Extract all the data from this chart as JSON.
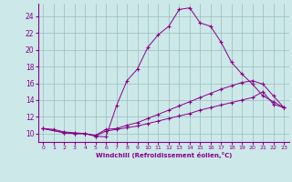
{
  "xlabel": "Windchill (Refroidissement éolien,°C)",
  "bg_color": "#cce8e8",
  "grid_color": "#9bbcbc",
  "line_color": "#880088",
  "xlim": [
    -0.5,
    23.5
  ],
  "ylim": [
    9.0,
    25.5
  ],
  "xticks": [
    0,
    1,
    2,
    3,
    4,
    5,
    6,
    7,
    8,
    9,
    10,
    11,
    12,
    13,
    14,
    15,
    16,
    17,
    18,
    19,
    20,
    21,
    22,
    23
  ],
  "yticks": [
    10,
    12,
    14,
    16,
    18,
    20,
    22,
    24
  ],
  "curve1_x": [
    0,
    1,
    2,
    3,
    4,
    5,
    6,
    7,
    8,
    9,
    10,
    11,
    12,
    13,
    14,
    15,
    16,
    17,
    18,
    19,
    20,
    21,
    22,
    23
  ],
  "curve1_y": [
    10.6,
    10.5,
    10.2,
    10.1,
    10.0,
    9.7,
    9.6,
    13.3,
    16.3,
    17.7,
    20.3,
    21.8,
    22.8,
    24.8,
    25.0,
    23.2,
    22.8,
    20.9,
    18.5,
    17.1,
    15.9,
    14.5,
    13.8,
    13.1
  ],
  "curve2_x": [
    0,
    2,
    3,
    4,
    5,
    6,
    7,
    8,
    9,
    10,
    11,
    12,
    13,
    14,
    15,
    16,
    17,
    18,
    19,
    20,
    21,
    22,
    23
  ],
  "curve2_y": [
    10.6,
    10.1,
    10.0,
    10.0,
    9.8,
    10.5,
    10.6,
    11.0,
    11.3,
    11.8,
    12.3,
    12.8,
    13.3,
    13.8,
    14.3,
    14.8,
    15.3,
    15.7,
    16.1,
    16.3,
    15.9,
    14.5,
    13.1
  ],
  "curve3_x": [
    0,
    2,
    3,
    4,
    5,
    6,
    7,
    8,
    9,
    10,
    11,
    12,
    13,
    14,
    15,
    16,
    17,
    18,
    19,
    20,
    21,
    22,
    23
  ],
  "curve3_y": [
    10.6,
    10.1,
    10.0,
    10.0,
    9.7,
    10.3,
    10.5,
    10.7,
    10.9,
    11.2,
    11.5,
    11.8,
    12.1,
    12.4,
    12.8,
    13.1,
    13.4,
    13.7,
    14.0,
    14.3,
    15.0,
    13.5,
    13.1
  ]
}
